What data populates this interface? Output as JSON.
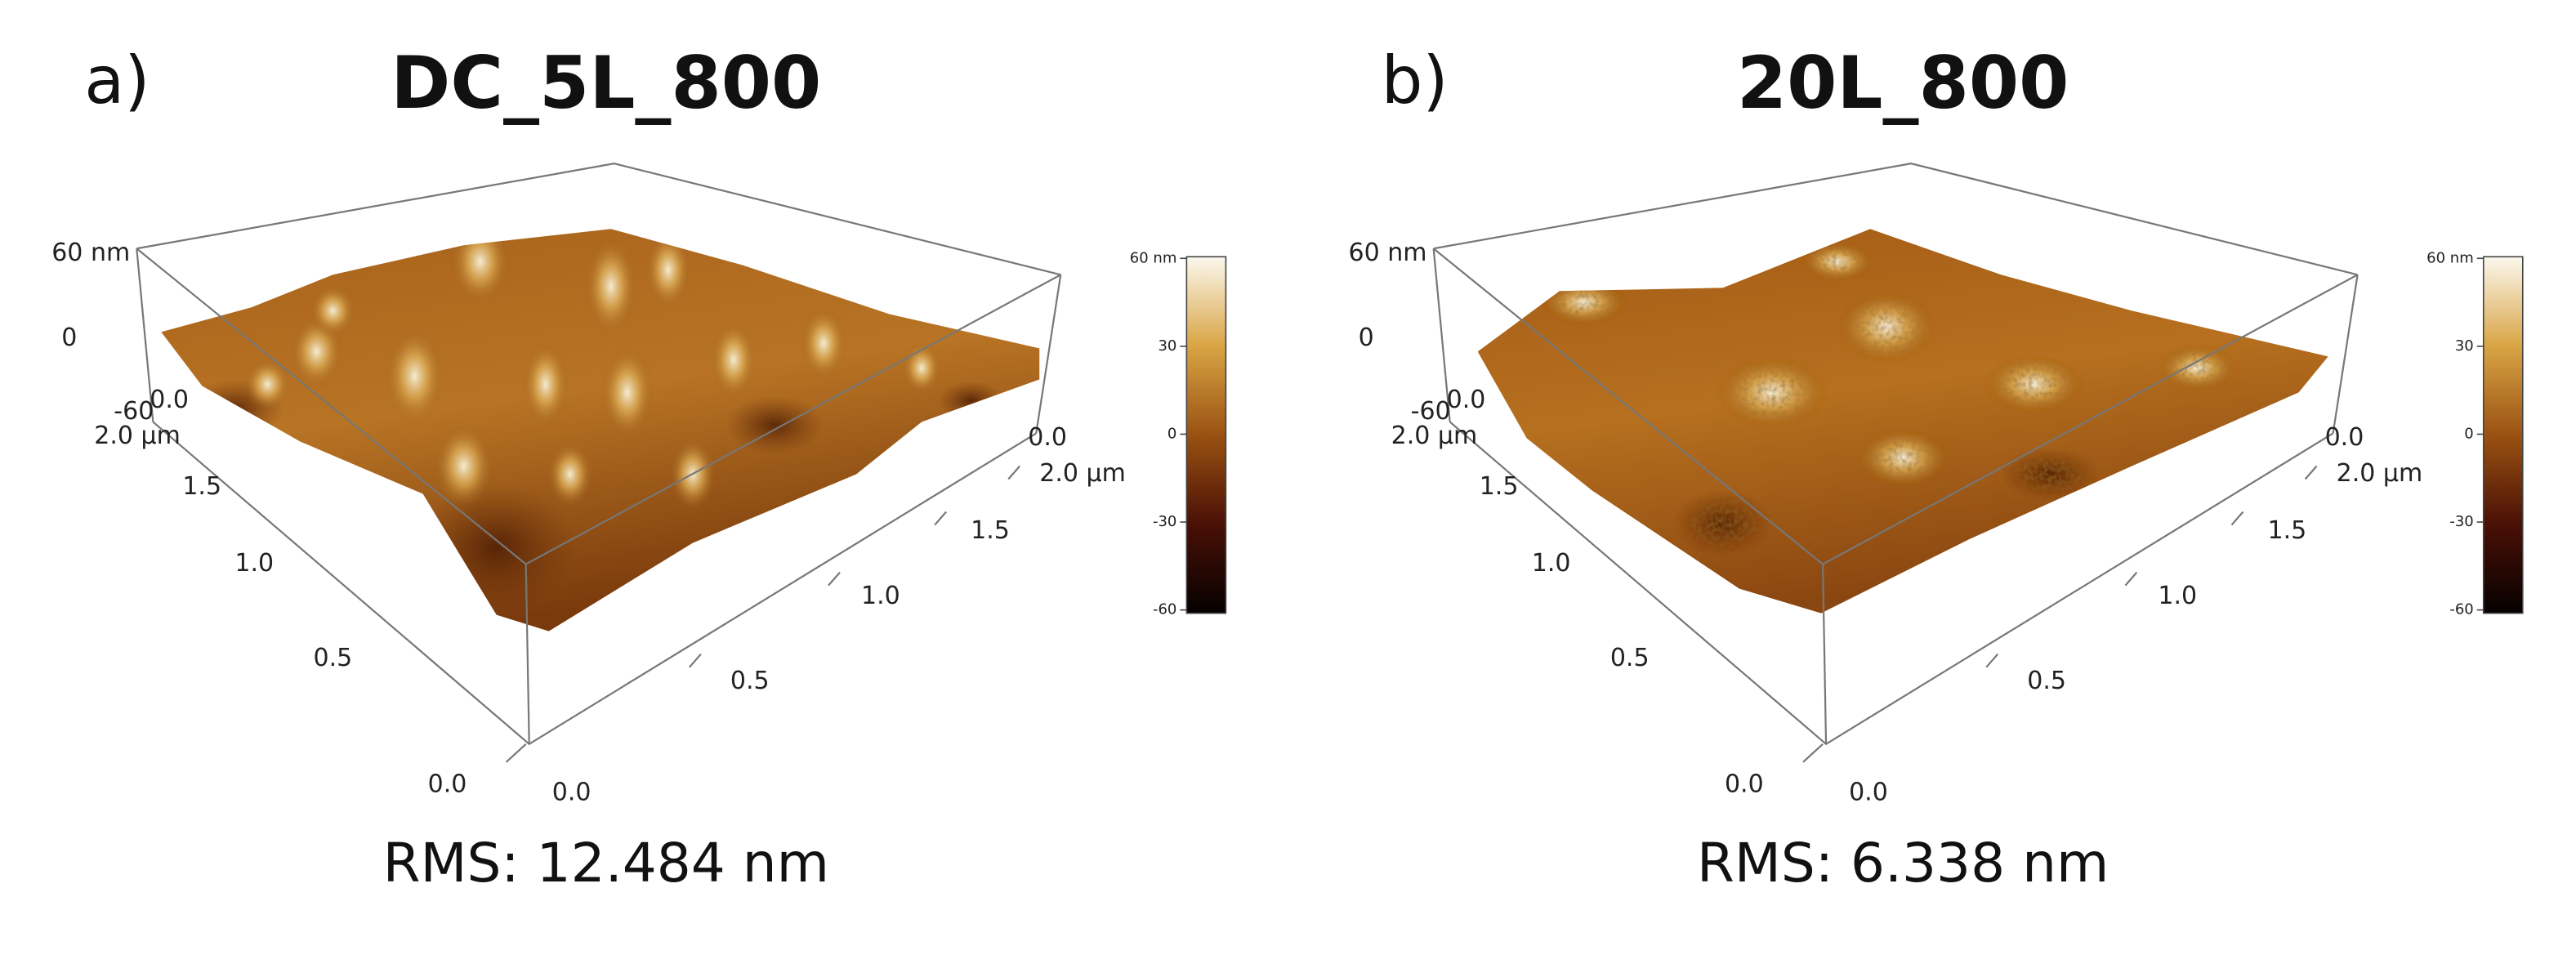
{
  "panels": [
    {
      "label": "a)",
      "title": "DC_5L_800",
      "z_axis_labels": [
        "60 nm",
        "0",
        "-60",
        "0.0",
        "2.0 µm"
      ],
      "y_axis_labels": [
        "1.5",
        "1.0",
        "0.5",
        "0.0"
      ],
      "x_axis_labels": [
        "0.0",
        "0.5",
        "1.0",
        "1.5",
        "2.0 µm",
        "0.0"
      ],
      "colorbar_labels": [
        "60 nm",
        "30",
        "0",
        "-30",
        "-60"
      ],
      "rms": "RMS: 12.484 nm"
    },
    {
      "label": "b)",
      "title": "20L_800",
      "z_axis_labels": [
        "60 nm",
        "0",
        "-60",
        "0.0",
        "2.0 µm"
      ],
      "y_axis_labels": [
        "1.5",
        "1.0",
        "0.5",
        "0.0"
      ],
      "x_axis_labels": [
        "0.0",
        "0.5",
        "1.0",
        "1.5",
        "2.0 µm",
        "0.0"
      ],
      "colorbar_labels": [
        "60 nm",
        "30",
        "0",
        "-30",
        "-60"
      ],
      "rms": "RMS: 6.338 nm"
    }
  ]
}
